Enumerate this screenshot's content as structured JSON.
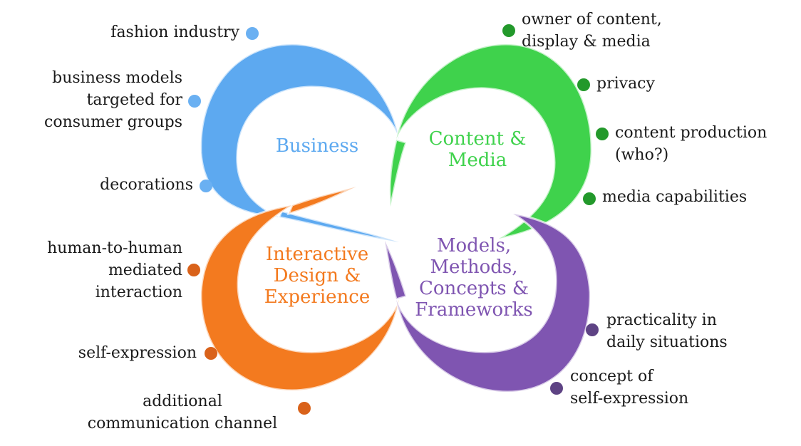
{
  "colors": {
    "business": "#5da9f0",
    "business_dot": "#6ab0f2",
    "content": "#3fd24c",
    "content_dot": "#23992b",
    "interactive": "#f37a1f",
    "interactive_dot": "#d9621a",
    "models": "#7f55b1",
    "models_dot": "#5e4384"
  },
  "petals": {
    "business": {
      "title": "Business"
    },
    "content": {
      "title": "Content &\nMedia"
    },
    "interactive": {
      "title": "Interactive\nDesign &\nExperience"
    },
    "models": {
      "title": "Models,\nMethods,\nConcepts &\nFrameworks"
    }
  },
  "items": {
    "business": [
      "fashion industry",
      "business models\ntargeted for\nconsumer groups",
      "decorations"
    ],
    "content": [
      "owner of content,\ndisplay & media",
      "privacy",
      "content production\n(who?)",
      "media capabilities"
    ],
    "interactive": [
      "human-to-human\nmediated\ninteraction",
      "self-expression",
      "additional\ncommunication channel"
    ],
    "models": [
      "practicality in\ndaily situations",
      "concept of\nself-expression"
    ]
  }
}
